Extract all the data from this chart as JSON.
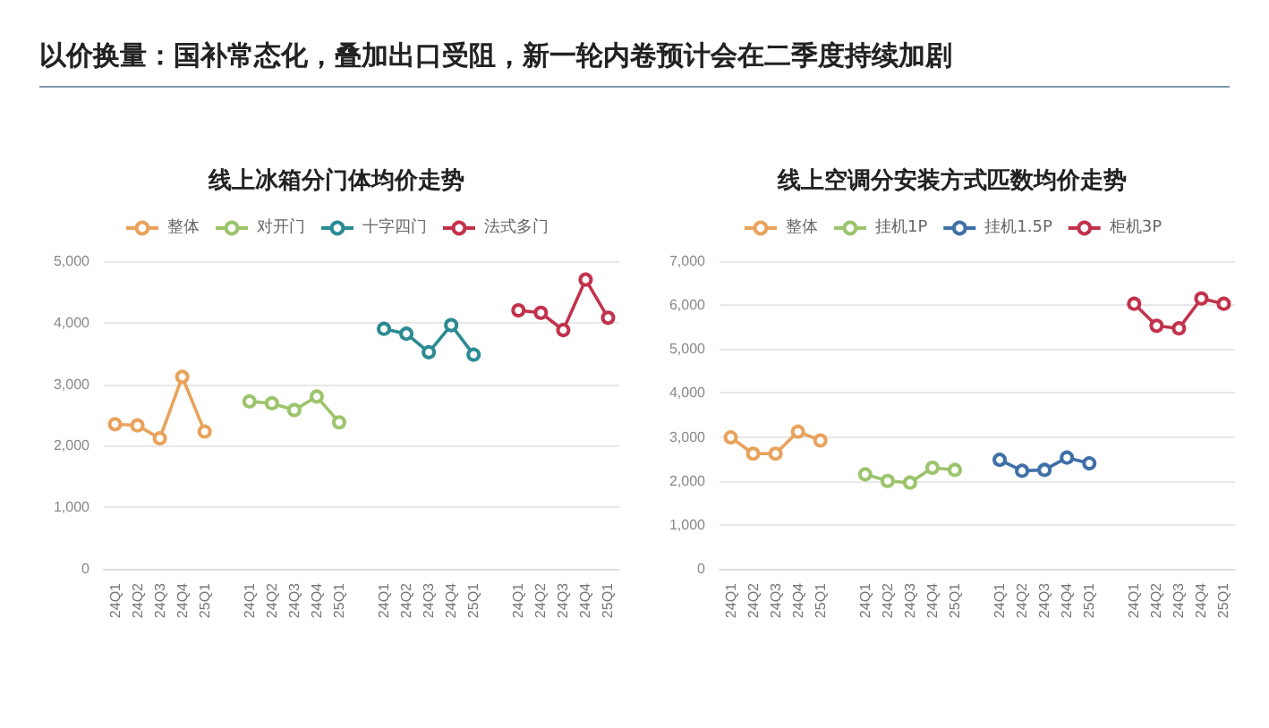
{
  "chart_data": [
    {
      "type": "line",
      "title": "线上冰箱分门体均价走势",
      "annotations": [
        "以价换量：国补常态化，叠加出口受阻，新一轮内卷预计会在二季度持续加剧"
      ],
      "categories": [
        "24Q1",
        "24Q2",
        "24Q3",
        "24Q4",
        "25Q1",
        null,
        "24Q1",
        "24Q2",
        "24Q3",
        "24Q4",
        "25Q1",
        null,
        "24Q1",
        "24Q2",
        "24Q3",
        "24Q4",
        "25Q1",
        null,
        "24Q1",
        "24Q2",
        "24Q3",
        "24Q4",
        "25Q1"
      ],
      "series": [
        {
          "name": "整体",
          "color": "#e9a25c",
          "values": [
            2350,
            2330,
            2120,
            3120,
            2230,
            null,
            null,
            null,
            null,
            null,
            null,
            null,
            null,
            null,
            null,
            null,
            null,
            null,
            null,
            null,
            null,
            null,
            null
          ]
        },
        {
          "name": "对开门",
          "color": "#9cc46c",
          "values": [
            null,
            null,
            null,
            null,
            null,
            null,
            2720,
            2690,
            2580,
            2800,
            2380,
            null,
            null,
            null,
            null,
            null,
            null,
            null,
            null,
            null,
            null,
            null,
            null
          ]
        },
        {
          "name": "十字四门",
          "color": "#2b8b92",
          "values": [
            null,
            null,
            null,
            null,
            null,
            null,
            null,
            null,
            null,
            null,
            null,
            null,
            3900,
            3820,
            3520,
            3960,
            3480,
            null,
            null,
            null,
            null,
            null,
            null
          ]
        },
        {
          "name": "法式多门",
          "color": "#c2324c",
          "values": [
            null,
            null,
            null,
            null,
            null,
            null,
            null,
            null,
            null,
            null,
            null,
            null,
            null,
            null,
            null,
            null,
            null,
            null,
            4200,
            4160,
            3880,
            4700,
            4080
          ]
        }
      ],
      "ylim": [
        0,
        5000
      ],
      "yticks": [
        0,
        {
          "value": 1000,
          "label": "1,000"
        },
        {
          "value": 2000,
          "label": "2,000"
        },
        {
          "value": 3000,
          "label": "3,000"
        },
        {
          "value": 4000,
          "label": "4,000"
        },
        {
          "value": 5000,
          "label": "5,000"
        }
      ],
      "grid": "y",
      "legend": "top",
      "marker": "circle"
    },
    {
      "type": "line",
      "title": "线上空调分安装方式匹数均价走势",
      "categories": [
        "24Q1",
        "24Q2",
        "24Q3",
        "24Q4",
        "25Q1",
        null,
        "24Q1",
        "24Q2",
        "24Q3",
        "24Q4",
        "25Q1",
        null,
        "24Q1",
        "24Q2",
        "24Q3",
        "24Q4",
        "25Q1",
        null,
        "24Q1",
        "24Q2",
        "24Q3",
        "24Q4",
        "25Q1"
      ],
      "series": [
        {
          "name": "整体",
          "color": "#e9a25c",
          "values": [
            2990,
            2620,
            2620,
            3120,
            2920,
            null,
            null,
            null,
            null,
            null,
            null,
            null,
            null,
            null,
            null,
            null,
            null,
            null,
            null,
            null,
            null,
            null,
            null
          ]
        },
        {
          "name": "挂机1P",
          "color": "#9cc46c",
          "values": [
            null,
            null,
            null,
            null,
            null,
            null,
            2150,
            2000,
            1960,
            2300,
            2250,
            null,
            null,
            null,
            null,
            null,
            null,
            null,
            null,
            null,
            null,
            null,
            null
          ]
        },
        {
          "name": "挂机1.5P",
          "color": "#3f70a8",
          "values": [
            null,
            null,
            null,
            null,
            null,
            null,
            null,
            null,
            null,
            null,
            null,
            null,
            2480,
            2230,
            2250,
            2530,
            2400,
            null,
            null,
            null,
            null,
            null,
            null
          ]
        },
        {
          "name": "柜机3P",
          "color": "#c2324c",
          "values": [
            null,
            null,
            null,
            null,
            null,
            null,
            null,
            null,
            null,
            null,
            null,
            null,
            null,
            null,
            null,
            null,
            null,
            null,
            6030,
            5530,
            5470,
            6150,
            6030
          ]
        }
      ],
      "ylim": [
        0,
        7000
      ],
      "yticks": [
        0,
        {
          "value": 1000,
          "label": "1,000"
        },
        {
          "value": 2000,
          "label": "2,000"
        },
        {
          "value": 3000,
          "label": "3,000"
        },
        {
          "value": 4000,
          "label": "4,000"
        },
        {
          "value": 5000,
          "label": "5,000"
        },
        {
          "value": 6000,
          "label": "6,000"
        },
        {
          "value": 7000,
          "label": "7,000"
        }
      ],
      "grid": "y",
      "legend": "top",
      "marker": "circle"
    }
  ]
}
